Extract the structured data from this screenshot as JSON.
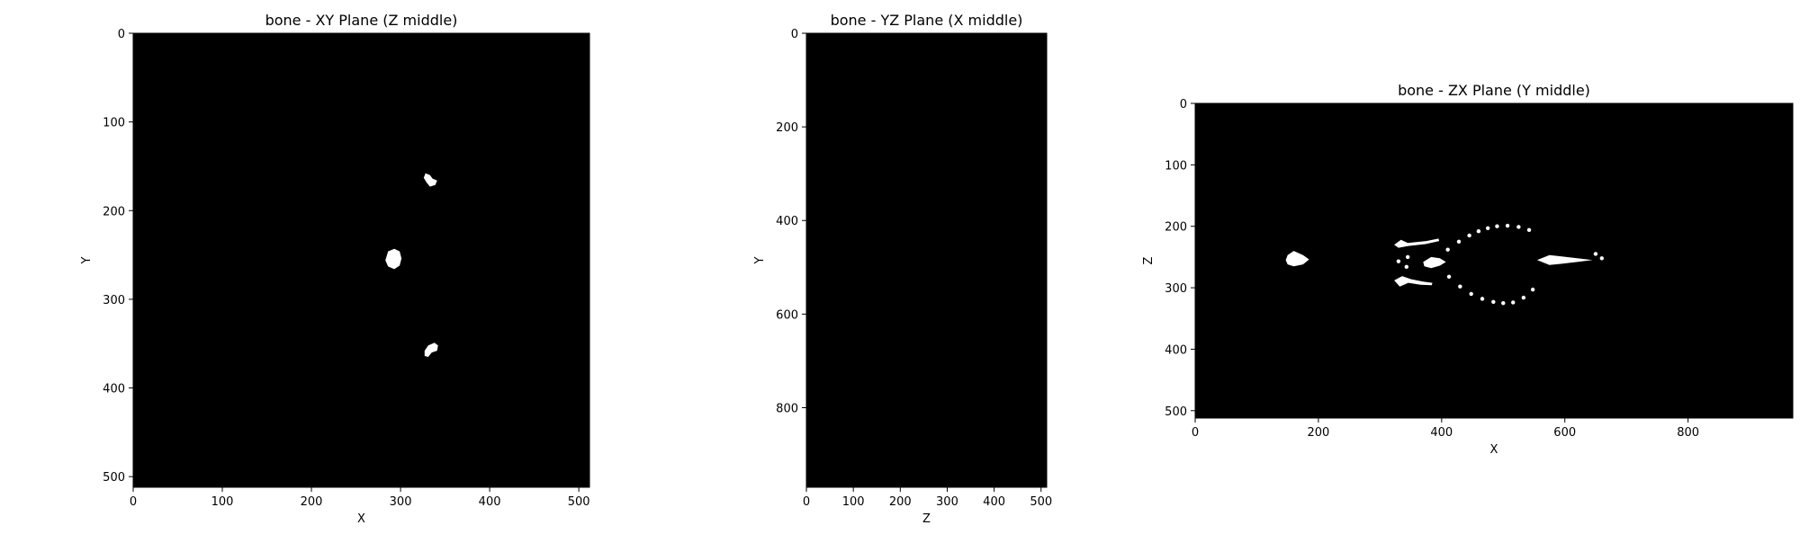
{
  "colors": {
    "background": "#000000",
    "mask": "#ffffff",
    "axis": "#000000"
  },
  "chart_data": [
    {
      "type": "heatmap",
      "title": "bone - XY Plane (Z middle)",
      "xlabel": "X",
      "ylabel": "Y",
      "xlim": [
        0,
        512
      ],
      "ylim": [
        512,
        0
      ],
      "xticks": [
        0,
        100,
        200,
        300,
        400,
        500
      ],
      "yticks": [
        0,
        100,
        200,
        300,
        400,
        500
      ],
      "colormap": "gray",
      "regions": [
        {
          "name": "upper blob",
          "points": [
            [
              328,
              158
            ],
            [
              333,
              160
            ],
            [
              336,
              164
            ],
            [
              341,
              166
            ],
            [
              339,
              171
            ],
            [
              333,
              173
            ],
            [
              329,
              168
            ],
            [
              326,
              163
            ]
          ]
        },
        {
          "name": "middle ring",
          "points": [
            [
              286,
              246
            ],
            [
              293,
              243
            ],
            [
              299,
              246
            ],
            [
              301,
              254
            ],
            [
              299,
              262
            ],
            [
              293,
              266
            ],
            [
              286,
              263
            ],
            [
              283,
              256
            ]
          ]
        },
        {
          "name": "lower blob",
          "points": [
            [
              327,
              358
            ],
            [
              331,
              352
            ],
            [
              338,
              349
            ],
            [
              342,
              352
            ],
            [
              341,
              358
            ],
            [
              335,
              360
            ],
            [
              331,
              365
            ],
            [
              327,
              364
            ]
          ]
        }
      ]
    },
    {
      "type": "heatmap",
      "title": "bone - YZ Plane (X middle)",
      "xlabel": "Z",
      "ylabel": "Y",
      "xlim": [
        0,
        512
      ],
      "ylim": [
        970,
        0
      ],
      "xticks": [
        0,
        100,
        200,
        300,
        400,
        500
      ],
      "yticks": [
        0,
        200,
        400,
        600,
        800
      ],
      "colormap": "gray",
      "regions": []
    },
    {
      "type": "heatmap",
      "title": "bone - ZX Plane (Y middle)",
      "xlabel": "X",
      "ylabel": "Z",
      "xlim": [
        0,
        970
      ],
      "ylim": [
        512,
        0
      ],
      "xticks": [
        0,
        200,
        400,
        600,
        800
      ],
      "yticks": [
        0,
        100,
        200,
        300,
        400,
        500
      ],
      "colormap": "gray",
      "regions": [
        {
          "name": "left loop",
          "points": [
            [
              150,
              247
            ],
            [
              160,
              240
            ],
            [
              175,
              247
            ],
            [
              185,
              254
            ],
            [
              175,
              262
            ],
            [
              160,
              265
            ],
            [
              150,
              262
            ],
            [
              147,
              255
            ]
          ]
        },
        {
          "name": "central bone",
          "points": [
            [
              370,
              258
            ],
            [
              383,
              250
            ],
            [
              397,
              252
            ],
            [
              407,
              258
            ],
            [
              397,
              264
            ],
            [
              383,
              268
            ],
            [
              372,
              265
            ]
          ]
        },
        {
          "name": "right bone",
          "points": [
            [
              555,
              255
            ],
            [
              575,
              247
            ],
            [
              595,
              249
            ],
            [
              620,
              252
            ],
            [
              645,
              255
            ],
            [
              620,
              258
            ],
            [
              595,
              261
            ],
            [
              575,
              263
            ]
          ]
        },
        {
          "name": "upper branch",
          "points": [
            [
              323,
              230
            ],
            [
              334,
              222
            ],
            [
              345,
              227
            ],
            [
              375,
              224
            ],
            [
              395,
              220
            ],
            [
              396,
              224
            ],
            [
              374,
              229
            ],
            [
              346,
              232
            ],
            [
              330,
              235
            ]
          ]
        },
        {
          "name": "lower branch",
          "points": [
            [
              323,
              288
            ],
            [
              336,
              281
            ],
            [
              350,
              286
            ],
            [
              370,
              290
            ],
            [
              385,
              292
            ],
            [
              384,
              296
            ],
            [
              366,
              295
            ],
            [
              346,
              292
            ],
            [
              332,
              298
            ]
          ]
        }
      ],
      "dots": [
        [
          410,
          238
        ],
        [
          428,
          225
        ],
        [
          445,
          215
        ],
        [
          460,
          208
        ],
        [
          475,
          203
        ],
        [
          490,
          200
        ],
        [
          507,
          199
        ],
        [
          525,
          201
        ],
        [
          542,
          206
        ],
        [
          412,
          282
        ],
        [
          430,
          298
        ],
        [
          448,
          310
        ],
        [
          466,
          318
        ],
        [
          484,
          323
        ],
        [
          500,
          325
        ],
        [
          516,
          324
        ],
        [
          533,
          316
        ],
        [
          548,
          303
        ],
        [
          345,
          250
        ],
        [
          343,
          266
        ],
        [
          330,
          257
        ],
        [
          660,
          252
        ],
        [
          650,
          245
        ]
      ]
    }
  ]
}
